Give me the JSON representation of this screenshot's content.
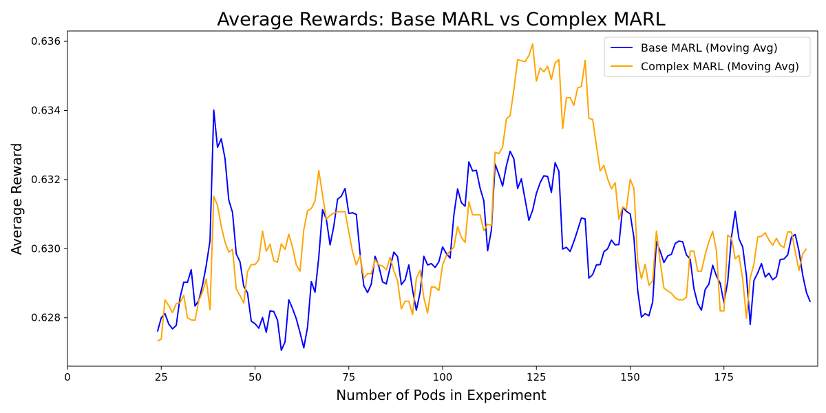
{
  "chart_data": {
    "type": "line",
    "title": "Average Rewards: Base MARL vs Complex MARL",
    "xlabel": "Number of Pods in Experiment",
    "ylabel": "Average Reward",
    "xlim": [
      0,
      200
    ],
    "ylim": [
      0.6266,
      0.6363
    ],
    "xticks": [
      0,
      25,
      50,
      75,
      100,
      125,
      150,
      175
    ],
    "xtick_labels": [
      "0",
      "25",
      "50",
      "75",
      "100",
      "125",
      "150",
      "175"
    ],
    "yticks": [
      0.628,
      0.63,
      0.632,
      0.634,
      0.636
    ],
    "ytick_labels": [
      "0.628",
      "0.630",
      "0.632",
      "0.634",
      "0.636"
    ],
    "grid": false,
    "legend_position": "top-right",
    "x_start": 24,
    "x_step": 1,
    "series": [
      {
        "name": "Base MARL (Moving Avg)",
        "color": "#0000ff",
        "values": [
          0.6276,
          0.628,
          0.62812,
          0.62782,
          0.62768,
          0.62778,
          0.62858,
          0.62903,
          0.62903,
          0.62939,
          0.62834,
          0.6285,
          0.62894,
          0.62952,
          0.63023,
          0.63401,
          0.63293,
          0.63318,
          0.63261,
          0.63141,
          0.63105,
          0.62985,
          0.62962,
          0.62891,
          0.62872,
          0.6279,
          0.62783,
          0.6277,
          0.62801,
          0.62758,
          0.6282,
          0.62818,
          0.62793,
          0.62706,
          0.6273,
          0.62852,
          0.62827,
          0.62797,
          0.62757,
          0.62713,
          0.62773,
          0.62905,
          0.62874,
          0.62976,
          0.63113,
          0.63086,
          0.63011,
          0.63065,
          0.63143,
          0.63152,
          0.63174,
          0.63102,
          0.63104,
          0.63099,
          0.62986,
          0.62893,
          0.62873,
          0.62898,
          0.62978,
          0.62949,
          0.62904,
          0.62898,
          0.62945,
          0.6299,
          0.62977,
          0.62896,
          0.6291,
          0.62953,
          0.6288,
          0.62822,
          0.62873,
          0.62978,
          0.62953,
          0.62957,
          0.62946,
          0.62962,
          0.63005,
          0.62986,
          0.62973,
          0.63097,
          0.63173,
          0.63133,
          0.63123,
          0.63251,
          0.63225,
          0.63227,
          0.63175,
          0.63138,
          0.62994,
          0.63053,
          0.63245,
          0.63215,
          0.63181,
          0.6324,
          0.63282,
          0.6326,
          0.63174,
          0.63202,
          0.63142,
          0.63082,
          0.63111,
          0.6316,
          0.63191,
          0.63211,
          0.63209,
          0.63163,
          0.63249,
          0.63224,
          0.62999,
          0.63004,
          0.62992,
          0.63021,
          0.63054,
          0.63089,
          0.63086,
          0.62915,
          0.62925,
          0.62953,
          0.62954,
          0.62991,
          0.63,
          0.63025,
          0.63011,
          0.63012,
          0.6312,
          0.63108,
          0.63101,
          0.63032,
          0.6288,
          0.62802,
          0.62812,
          0.62806,
          0.62846,
          0.63021,
          0.62993,
          0.6296,
          0.62979,
          0.62984,
          0.63015,
          0.63022,
          0.6302,
          0.62982,
          0.6297,
          0.62884,
          0.62841,
          0.62822,
          0.62882,
          0.62898,
          0.62952,
          0.62921,
          0.629,
          0.62843,
          0.62905,
          0.63033,
          0.63108,
          0.63029,
          0.63005,
          0.62921,
          0.62781,
          0.62908,
          0.6293,
          0.62957,
          0.62918,
          0.62929,
          0.6291,
          0.62919,
          0.62969,
          0.6297,
          0.62982,
          0.63034,
          0.63041,
          0.62993,
          0.62923,
          0.62873,
          0.62846
        ]
      },
      {
        "name": "Complex MARL (Moving Avg)",
        "color": "#ffa500",
        "values": [
          0.62733,
          0.62738,
          0.62852,
          0.62835,
          0.62815,
          0.62841,
          0.62844,
          0.62865,
          0.628,
          0.62794,
          0.62793,
          0.62849,
          0.62875,
          0.62912,
          0.62823,
          0.63152,
          0.63125,
          0.63065,
          0.63019,
          0.6299,
          0.62998,
          0.62883,
          0.62864,
          0.62843,
          0.62934,
          0.62954,
          0.62954,
          0.62968,
          0.63051,
          0.62993,
          0.63013,
          0.62965,
          0.62961,
          0.63014,
          0.62998,
          0.63042,
          0.63004,
          0.62953,
          0.62935,
          0.63054,
          0.6311,
          0.63116,
          0.63138,
          0.63226,
          0.63155,
          0.63086,
          0.63096,
          0.63103,
          0.63107,
          0.63107,
          0.63107,
          0.63048,
          0.62991,
          0.62953,
          0.6298,
          0.62915,
          0.62928,
          0.62928,
          0.62968,
          0.62953,
          0.6295,
          0.62939,
          0.62975,
          0.62937,
          0.62907,
          0.62826,
          0.62848,
          0.62848,
          0.62809,
          0.62914,
          0.62938,
          0.62858,
          0.62814,
          0.62889,
          0.62889,
          0.62879,
          0.62953,
          0.6298,
          0.62994,
          0.63004,
          0.63064,
          0.63033,
          0.63018,
          0.63136,
          0.63098,
          0.63098,
          0.63098,
          0.63052,
          0.63071,
          0.63067,
          0.63279,
          0.63275,
          0.63294,
          0.63376,
          0.63385,
          0.6346,
          0.63547,
          0.63544,
          0.63541,
          0.63559,
          0.63592,
          0.63485,
          0.63523,
          0.63512,
          0.63528,
          0.6349,
          0.63538,
          0.63547,
          0.63348,
          0.63437,
          0.63437,
          0.63415,
          0.63465,
          0.6347,
          0.63545,
          0.63377,
          0.63374,
          0.63299,
          0.63225,
          0.63241,
          0.63202,
          0.63173,
          0.63191,
          0.63085,
          0.63121,
          0.63114,
          0.63201,
          0.63175,
          0.62964,
          0.62913,
          0.62955,
          0.62894,
          0.62907,
          0.63051,
          0.62962,
          0.62886,
          0.62878,
          0.62871,
          0.62858,
          0.62852,
          0.62852,
          0.62859,
          0.62993,
          0.62993,
          0.62935,
          0.62935,
          0.62983,
          0.63021,
          0.6305,
          0.62994,
          0.6282,
          0.6282,
          0.63039,
          0.63031,
          0.62971,
          0.62981,
          0.62911,
          0.62799,
          0.62915,
          0.62956,
          0.63034,
          0.63036,
          0.63046,
          0.63025,
          0.6301,
          0.6303,
          0.6301,
          0.63003,
          0.63049,
          0.63048,
          0.62992,
          0.62937,
          0.62985,
          0.63
        ]
      }
    ]
  }
}
